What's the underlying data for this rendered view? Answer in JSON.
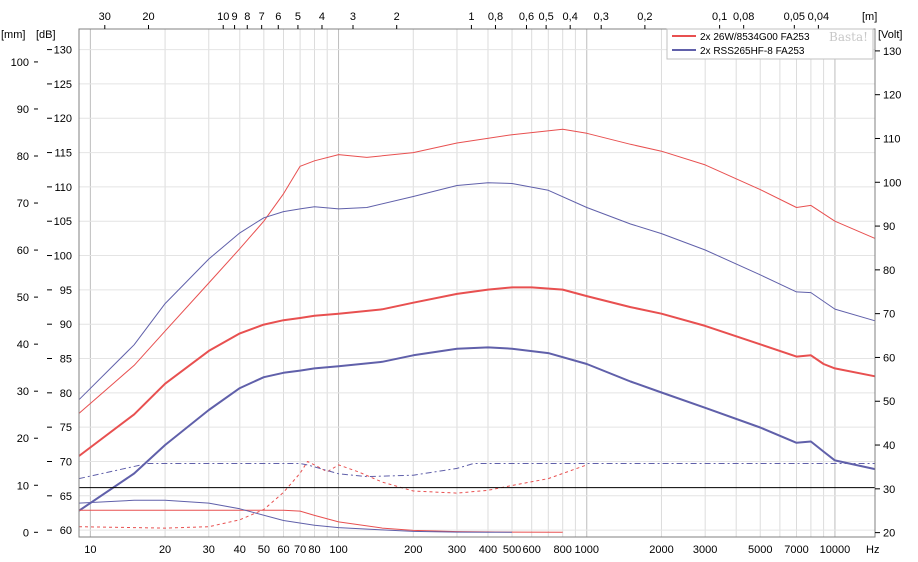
{
  "chart_data": {
    "type": "line",
    "title": "",
    "xlabel": "Hz",
    "x_scale": "log",
    "xlim": [
      9,
      14500
    ],
    "ylim_spl": [
      59,
      133
    ],
    "ylim_excursion": [
      -1,
      107
    ],
    "ylim_volt": [
      19,
      135
    ],
    "axis_units": {
      "left_excursion": "mm",
      "left_spl": "dB",
      "right_volt": "Volt",
      "top_wavelength": "m"
    },
    "x_tick_labels": [
      {
        "v": 10,
        "t": "10"
      },
      {
        "v": 20,
        "t": "20"
      },
      {
        "v": 30,
        "t": "30"
      },
      {
        "v": 40,
        "t": "40"
      },
      {
        "v": 50,
        "t": "50"
      },
      {
        "v": 60,
        "t": "60"
      },
      {
        "v": 70,
        "t": "70"
      },
      {
        "v": 80,
        "t": "80"
      },
      {
        "v": 100,
        "t": "100"
      },
      {
        "v": 200,
        "t": "200"
      },
      {
        "v": 300,
        "t": "300"
      },
      {
        "v": 400,
        "t": "400"
      },
      {
        "v": 500,
        "t": "500"
      },
      {
        "v": 600,
        "t": "600"
      },
      {
        "v": 800,
        "t": "800"
      },
      {
        "v": 1000,
        "t": "1000"
      },
      {
        "v": 2000,
        "t": "2000"
      },
      {
        "v": 3000,
        "t": "3000"
      },
      {
        "v": 5000,
        "t": "5000"
      },
      {
        "v": 7000,
        "t": "7000"
      },
      {
        "v": 10000,
        "t": "10000"
      }
    ],
    "top_tick_labels": [
      "30",
      "20",
      "10",
      "9",
      "8",
      "7",
      "6",
      "5",
      "4",
      "3",
      "2",
      "1",
      "0,8",
      "0,6",
      "0,5",
      "0,4",
      "0,3",
      "0,2",
      "0,1",
      "0,08",
      "0,05",
      "0,04"
    ],
    "spl_ticks": [
      60,
      65,
      70,
      75,
      80,
      85,
      90,
      95,
      100,
      105,
      110,
      115,
      120,
      125,
      130
    ],
    "excursion_ticks": [
      0,
      10,
      20,
      30,
      40,
      50,
      60,
      70,
      80,
      90,
      100
    ],
    "volt_ticks": [
      20,
      30,
      40,
      50,
      60,
      70,
      80,
      90,
      100,
      110,
      120,
      130
    ],
    "reference_line_spl": 66.2,
    "grid": true,
    "legend_position": "top-right",
    "watermark": "Basta!",
    "series": [
      {
        "name": "2x 26W/8534G00 FA253",
        "color": "#e85050",
        "kind": "spl_max",
        "axis": "spl",
        "x": [
          9,
          15,
          20,
          30,
          40,
          50,
          60,
          70,
          80,
          100,
          130,
          200,
          300,
          500,
          800,
          1000,
          1500,
          2000,
          3000,
          5000,
          7000,
          8000,
          10000,
          14500
        ],
        "y": [
          77,
          84,
          89,
          96,
          101,
          105,
          109,
          113,
          113.8,
          114.7,
          114.3,
          115,
          116.4,
          117.6,
          118.4,
          117.8,
          116.2,
          115.2,
          113.2,
          109.6,
          107,
          107.3,
          105,
          102.5
        ]
      },
      {
        "name": "2x RSS265HF-8 FA253",
        "color": "#6060aa",
        "kind": "spl_max",
        "axis": "spl",
        "x": [
          9,
          15,
          20,
          30,
          40,
          50,
          60,
          70,
          80,
          100,
          130,
          200,
          300,
          400,
          500,
          700,
          1000,
          1500,
          2000,
          3000,
          5000,
          7000,
          8000,
          10000,
          14500
        ],
        "y": [
          79,
          87,
          93,
          99.5,
          103.3,
          105.5,
          106.4,
          106.8,
          107.1,
          106.8,
          107,
          108.6,
          110.2,
          110.6,
          110.5,
          109.5,
          107,
          104.6,
          103.2,
          100.8,
          97.2,
          94.7,
          94.6,
          92.2,
          90.5
        ]
      },
      {
        "name": "",
        "color": "#e85050",
        "kind": "voltage",
        "axis": "volt",
        "x": [
          9,
          15,
          20,
          30,
          40,
          50,
          60,
          70,
          80,
          100,
          150,
          200,
          300,
          400,
          500,
          600,
          800,
          1000,
          1500,
          2000,
          3000,
          5000,
          7000,
          8000,
          9000,
          10000,
          14500
        ],
        "y": [
          37.5,
          47,
          54,
          61.5,
          65.5,
          67.5,
          68.5,
          69,
          69.5,
          70,
          71,
          72.5,
          74.5,
          75.5,
          76,
          76,
          75.5,
          74,
          71.5,
          70,
          67.2,
          63,
          60.2,
          60.5,
          58.5,
          57.5,
          55.7
        ]
      },
      {
        "name": "",
        "color": "#6060aa",
        "kind": "voltage",
        "axis": "volt",
        "x": [
          9,
          15,
          20,
          30,
          40,
          50,
          60,
          70,
          80,
          100,
          150,
          200,
          300,
          400,
          500,
          700,
          1000,
          1500,
          2000,
          3000,
          5000,
          7000,
          8000,
          9000,
          10000,
          14500
        ],
        "y": [
          25,
          33.5,
          40,
          48,
          53,
          55.5,
          56.5,
          57,
          57.5,
          58,
          59,
          60.5,
          62,
          62.3,
          62,
          61,
          58.5,
          54.5,
          52,
          48.5,
          44,
          40.5,
          40.8,
          38.5,
          36.5,
          34.5
        ]
      },
      {
        "name": "",
        "color": "#e85050",
        "kind": "excursion",
        "axis": "excursion",
        "x": [
          9,
          20,
          40,
          60,
          70,
          80,
          100,
          150,
          200,
          300,
          500,
          800
        ],
        "y": [
          4.7,
          4.7,
          4.7,
          4.7,
          4.5,
          3.6,
          2.2,
          0.9,
          0.4,
          0.15,
          0.05,
          0
        ]
      },
      {
        "name": "",
        "color": "#6060aa",
        "kind": "excursion",
        "axis": "excursion",
        "x": [
          9,
          15,
          20,
          30,
          40,
          60,
          80,
          100,
          150,
          200,
          300,
          400,
          500
        ],
        "y": [
          6.2,
          6.8,
          6.8,
          6.2,
          5,
          2.5,
          1.5,
          1,
          0.5,
          0.2,
          0.05,
          0,
          0
        ]
      },
      {
        "name": "",
        "color": "#e85050",
        "kind": "limit",
        "axis": "spl",
        "x": [
          9,
          20,
          30,
          40,
          50,
          60,
          70,
          75,
          80,
          90,
          100,
          120,
          150,
          200,
          300,
          400,
          500,
          700,
          1000
        ],
        "y": [
          60.5,
          60.3,
          60.5,
          61.5,
          63,
          65.5,
          68.3,
          70,
          69.5,
          68.5,
          69.5,
          68.5,
          67,
          65.7,
          65.4,
          65.8,
          66.5,
          67.5,
          69.5
        ]
      },
      {
        "name": "",
        "color": "#6060aa",
        "kind": "limit",
        "axis": "spl",
        "x": [
          9,
          17,
          70,
          75,
          100,
          130,
          200,
          300,
          350,
          14500
        ],
        "y": [
          67.5,
          69.7,
          69.7,
          69.5,
          68.2,
          67.8,
          68,
          69,
          69.7,
          69.7
        ]
      }
    ]
  }
}
